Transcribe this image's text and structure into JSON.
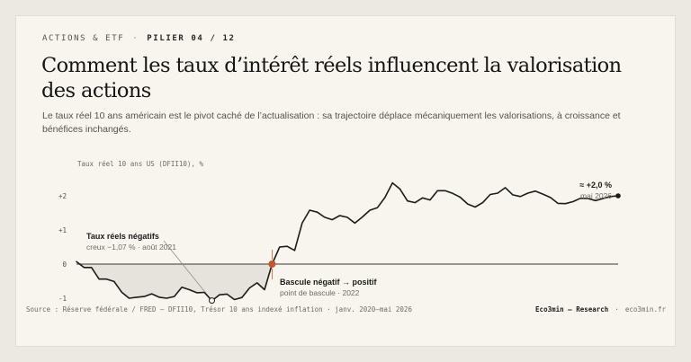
{
  "header": {
    "category": "ACTIONS & ETF",
    "separator": "·",
    "pillar": "PILIER 04 / 12"
  },
  "title": "Comment les taux d’intérêt réels influencent la valorisation des actions",
  "subtitle": "Le taux réel 10 ans américain est le pivot caché de l’actualisation : sa trajectoire déplace mécaniquement les valorisations, à croissance et bénéfices inchangés.",
  "chart_data": {
    "type": "line",
    "ylabel": "Taux réel 10 ans US (DFII10), %",
    "ylim": [
      -1.15,
      2.45
    ],
    "yticks": [
      {
        "value": 2,
        "label": "+2"
      },
      {
        "value": 1,
        "label": "+1"
      },
      {
        "value": 0,
        "label": "0"
      },
      {
        "value": -1,
        "label": "-1"
      }
    ],
    "x_range": [
      "2020-01",
      "2026-05"
    ],
    "grid": false,
    "series": [
      {
        "values": [
          0.07,
          -0.1,
          -0.1,
          -0.44,
          -0.44,
          -0.51,
          -0.82,
          -1.0,
          -0.97,
          -0.95,
          -0.87,
          -0.97,
          -1.0,
          -0.95,
          -0.68,
          -0.75,
          -0.84,
          -0.83,
          -1.07,
          -0.9,
          -0.88,
          -1.04,
          -0.98,
          -0.7,
          -0.55,
          -0.75,
          0.0,
          0.5,
          0.52,
          0.4,
          1.2,
          1.58,
          1.52,
          1.37,
          1.3,
          1.42,
          1.37,
          1.2,
          1.38,
          1.58,
          1.65,
          1.95,
          2.38,
          2.2,
          1.85,
          1.8,
          1.94,
          1.88,
          2.15,
          2.15,
          2.07,
          1.96,
          1.76,
          1.67,
          1.8,
          2.04,
          2.08,
          2.24,
          2.03,
          1.98,
          2.08,
          2.14,
          2.05,
          1.95,
          1.78,
          1.77,
          1.83,
          1.93,
          1.92,
          1.86,
          1.92,
          1.98,
          2.0
        ]
      }
    ],
    "annotations": {
      "trough": {
        "index": 18,
        "value": -1.07,
        "title": "Taux réels négatifs",
        "detail": "creux −1,07 % · août 2021"
      },
      "pivot": {
        "index": 26,
        "value": 0,
        "title": "Bascule négatif → positif",
        "detail": "point de bascule · 2022"
      },
      "latest": {
        "index": 72,
        "value": 2.0,
        "title": "≈ +2,0 %",
        "detail": "mai 2026"
      }
    },
    "colors": {
      "line": "#1c1b19",
      "pivot": "#c5572f",
      "area": "#e6e3dc",
      "zero": "#3a3833"
    }
  },
  "footer": {
    "source": "Source : Réserve fédérale / FRED — DFII10, Trésor 10 ans indexé inflation · janv. 2020–mai 2026",
    "brand": "Eco3min — Research",
    "separator": "·",
    "site": "eco3min.fr"
  }
}
